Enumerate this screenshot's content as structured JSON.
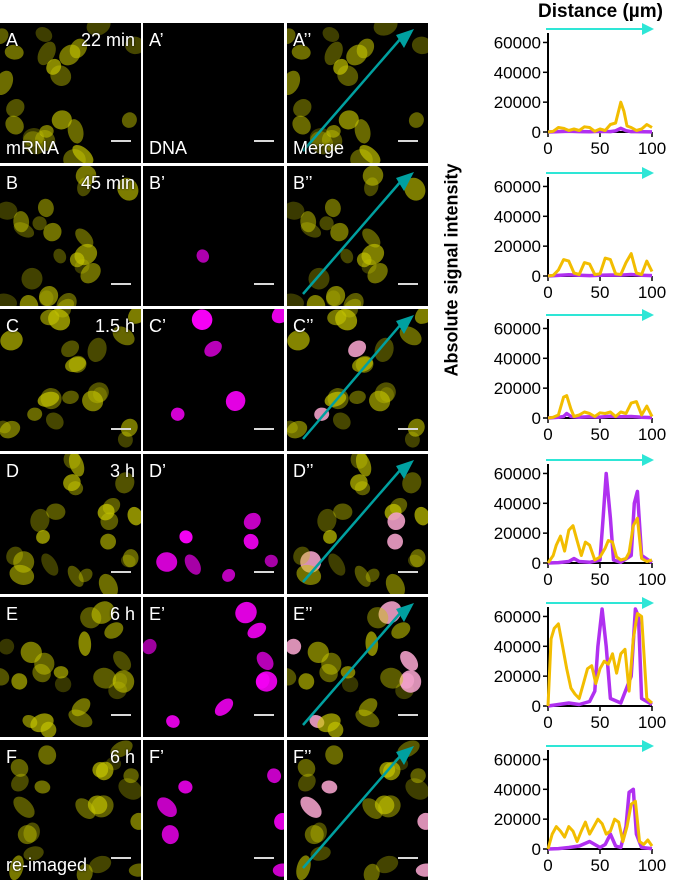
{
  "figure": {
    "rows": [
      {
        "time": "22 min",
        "caption": "mRNA",
        "dna_caption": "DNA",
        "merge_caption": "Merge",
        "labels": [
          "A",
          "A’",
          "A’’"
        ],
        "dna_level": 0.0,
        "merge_magenta": 0.0
      },
      {
        "time": "45 min",
        "caption": "",
        "dna_caption": "",
        "merge_caption": "",
        "labels": [
          "B",
          "B’",
          "B’’"
        ],
        "dna_level": 0.05,
        "merge_magenta": 0.0
      },
      {
        "time": "1.5 h",
        "caption": "",
        "dna_caption": "",
        "merge_caption": "",
        "labels": [
          "C",
          "C’",
          "C’’"
        ],
        "dna_level": 0.3,
        "merge_magenta": 0.2
      },
      {
        "time": "3 h",
        "caption": "",
        "dna_caption": "",
        "merge_caption": "",
        "labels": [
          "D",
          "D’",
          "D’’"
        ],
        "dna_level": 0.6,
        "merge_magenta": 0.5
      },
      {
        "time": "6 h",
        "caption": "",
        "dna_caption": "",
        "merge_caption": "",
        "labels": [
          "E",
          "E’",
          "E’’"
        ],
        "dna_level": 1.0,
        "merge_magenta": 0.8
      },
      {
        "time": "6 h",
        "caption": "re-imaged",
        "dna_caption": "",
        "merge_caption": "",
        "labels": [
          "F",
          "F’",
          "F’’"
        ],
        "dna_level": 0.5,
        "merge_magenta": 0.5
      }
    ],
    "colors": {
      "mrna": "#c8c800",
      "dna": "#ff00ff",
      "arrow": "#00a0a0",
      "plot_arrow": "#2ee6d6",
      "line_mrna": "#f2bd00",
      "line_dna": "#b030f0"
    }
  },
  "chart_data": {
    "type": "line",
    "xlabel": "Distance (µm)",
    "ylabel": "Absolute signal intensity",
    "xlim": [
      0,
      100
    ],
    "ylim": [
      0,
      65000
    ],
    "xticks": [
      "0",
      "50",
      "100"
    ],
    "yticks": [
      "0",
      "20000",
      "40000",
      "60000"
    ],
    "plots": [
      {
        "panel": "A’’",
        "series": [
          {
            "color": "#b030f0",
            "x": [
              0,
              10,
              20,
              30,
              40,
              50,
              60,
              65,
              70,
              75,
              80,
              90,
              100
            ],
            "y": [
              0,
              300,
              500,
              300,
              200,
              400,
              300,
              800,
              2500,
              900,
              300,
              200,
              100
            ]
          },
          {
            "color": "#f2bd00",
            "x": [
              0,
              5,
              10,
              15,
              20,
              25,
              30,
              35,
              40,
              45,
              50,
              55,
              60,
              65,
              70,
              73,
              76,
              80,
              85,
              90,
              95,
              100
            ],
            "y": [
              0,
              500,
              3000,
              2500,
              1000,
              2000,
              1000,
              3500,
              3000,
              500,
              2000,
              1000,
              5000,
              6000,
              20000,
              14000,
              4000,
              3000,
              1000,
              2000,
              5000,
              3000
            ]
          }
        ]
      },
      {
        "panel": "B’’",
        "series": [
          {
            "color": "#b030f0",
            "x": [
              0,
              10,
              20,
              30,
              40,
              50,
              60,
              70,
              80,
              90,
              100
            ],
            "y": [
              0,
              400,
              800,
              500,
              300,
              500,
              700,
              600,
              1000,
              500,
              300
            ]
          },
          {
            "color": "#f2bd00",
            "x": [
              0,
              5,
              10,
              15,
              20,
              25,
              30,
              35,
              40,
              45,
              50,
              55,
              60,
              65,
              70,
              75,
              80,
              85,
              90,
              95,
              100
            ],
            "y": [
              0,
              500,
              4000,
              11000,
              10000,
              2000,
              1000,
              9000,
              8000,
              1000,
              1500,
              12000,
              11000,
              1500,
              1000,
              9000,
              15000,
              2000,
              1000,
              10000,
              3000
            ]
          }
        ]
      },
      {
        "panel": "C’’",
        "series": [
          {
            "color": "#b030f0",
            "x": [
              0,
              10,
              15,
              18,
              22,
              30,
              40,
              50,
              60,
              70,
              80,
              90,
              100
            ],
            "y": [
              0,
              500,
              1000,
              3000,
              1000,
              500,
              800,
              600,
              1200,
              800,
              1000,
              500,
              300
            ]
          },
          {
            "color": "#f2bd00",
            "x": [
              0,
              5,
              10,
              15,
              18,
              22,
              25,
              30,
              35,
              40,
              45,
              50,
              55,
              60,
              65,
              70,
              75,
              80,
              85,
              90,
              95,
              100
            ],
            "y": [
              0,
              500,
              2000,
              14000,
              15000,
              6000,
              1000,
              2000,
              4000,
              3000,
              1000,
              3500,
              3000,
              4000,
              1000,
              4000,
              3000,
              10000,
              11000,
              2000,
              8000,
              1000
            ]
          }
        ]
      },
      {
        "panel": "D’’",
        "series": [
          {
            "color": "#b030f0",
            "x": [
              0,
              10,
              20,
              25,
              30,
              40,
              50,
              53,
              56,
              60,
              63,
              70,
              80,
              83,
              86,
              90,
              100
            ],
            "y": [
              0,
              300,
              1000,
              3000,
              1000,
              500,
              2000,
              30000,
              60000,
              30000,
              2000,
              500,
              5000,
              40000,
              48000,
              5000,
              300
            ]
          },
          {
            "color": "#f2bd00",
            "x": [
              0,
              5,
              8,
              12,
              16,
              20,
              24,
              28,
              32,
              36,
              40,
              45,
              50,
              55,
              58,
              62,
              66,
              70,
              75,
              78,
              82,
              86,
              90,
              95,
              100
            ],
            "y": [
              0,
              5000,
              12000,
              18000,
              8000,
              22000,
              25000,
              15000,
              5000,
              14000,
              12000,
              2000,
              4000,
              10000,
              15000,
              14000,
              4000,
              2000,
              3000,
              7000,
              25000,
              30000,
              3000,
              1000,
              2000
            ]
          }
        ]
      },
      {
        "panel": "E’’",
        "series": [
          {
            "color": "#b030f0",
            "x": [
              0,
              10,
              20,
              30,
              40,
              45,
              48,
              52,
              56,
              60,
              70,
              80,
              84,
              87,
              90,
              100
            ],
            "y": [
              0,
              1000,
              2000,
              1000,
              3000,
              10000,
              40000,
              65000,
              40000,
              5000,
              2000,
              20000,
              65000,
              60000,
              5000,
              1000
            ]
          },
          {
            "color": "#f2bd00",
            "x": [
              0,
              3,
              6,
              10,
              14,
              18,
              22,
              26,
              30,
              34,
              38,
              42,
              46,
              50,
              54,
              58,
              62,
              66,
              70,
              74,
              78,
              82,
              86,
              90,
              95,
              100
            ],
            "y": [
              0,
              45000,
              52000,
              55000,
              40000,
              25000,
              12000,
              8000,
              5000,
              15000,
              25000,
              27000,
              15000,
              25000,
              30000,
              28000,
              35000,
              22000,
              35000,
              38000,
              10000,
              45000,
              62000,
              60000,
              5000,
              2000
            ]
          }
        ]
      },
      {
        "panel": "F’’",
        "series": [
          {
            "color": "#b030f0",
            "x": [
              0,
              10,
              20,
              30,
              40,
              50,
              55,
              60,
              65,
              70,
              75,
              78,
              82,
              85,
              90,
              100
            ],
            "y": [
              0,
              300,
              1000,
              2000,
              5000,
              1000,
              3000,
              10000,
              2000,
              1000,
              15000,
              38000,
              40000,
              10000,
              1000,
              300
            ]
          },
          {
            "color": "#f2bd00",
            "x": [
              0,
              4,
              8,
              12,
              16,
              20,
              24,
              28,
              32,
              36,
              40,
              44,
              48,
              52,
              56,
              60,
              64,
              68,
              72,
              76,
              80,
              84,
              88,
              92,
              96,
              100
            ],
            "y": [
              0,
              10000,
              15000,
              12000,
              8000,
              15000,
              12000,
              5000,
              12000,
              18000,
              10000,
              15000,
              20000,
              17000,
              10000,
              12000,
              20000,
              18000,
              5000,
              15000,
              30000,
              32000,
              5000,
              3000,
              6000,
              2000
            ]
          }
        ]
      }
    ]
  }
}
